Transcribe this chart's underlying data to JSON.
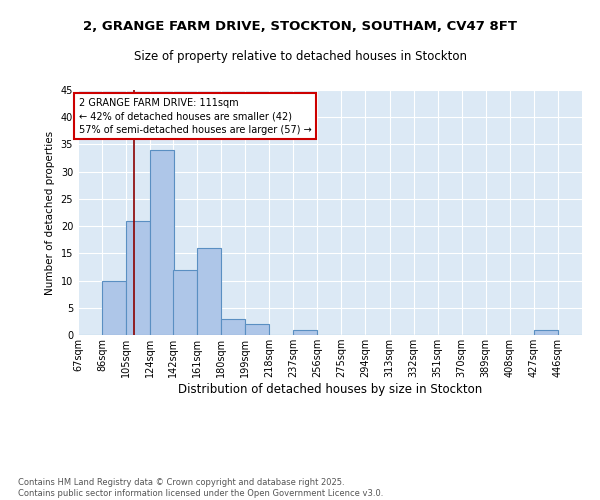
{
  "title_line1": "2, GRANGE FARM DRIVE, STOCKTON, SOUTHAM, CV47 8FT",
  "title_line2": "Size of property relative to detached houses in Stockton",
  "xlabel": "Distribution of detached houses by size in Stockton",
  "ylabel": "Number of detached properties",
  "footnote": "Contains HM Land Registry data © Crown copyright and database right 2025.\nContains public sector information licensed under the Open Government Licence v3.0.",
  "bins": [
    67,
    86,
    105,
    124,
    142,
    161,
    180,
    199,
    218,
    237,
    256,
    275,
    294,
    313,
    332,
    351,
    370,
    389,
    408,
    427,
    446
  ],
  "counts": [
    0,
    10,
    21,
    34,
    12,
    16,
    3,
    2,
    0,
    1,
    0,
    0,
    0,
    0,
    0,
    0,
    0,
    0,
    0,
    1,
    0
  ],
  "bar_color": "#aec6e8",
  "bar_edge_color": "#5a8fc2",
  "vline_x": 111,
  "vline_color": "#8b0000",
  "annotation_text": "2 GRANGE FARM DRIVE: 111sqm\n← 42% of detached houses are smaller (42)\n57% of semi-detached houses are larger (57) →",
  "annotation_box_color": "#ffffff",
  "annotation_border_color": "#cc0000",
  "ylim": [
    0,
    45
  ],
  "yticks": [
    0,
    5,
    10,
    15,
    20,
    25,
    30,
    35,
    40,
    45
  ],
  "fig_bg_color": "#ffffff",
  "plot_bg_color": "#dce9f5",
  "grid_color": "#ffffff",
  "title1_fontsize": 9.5,
  "title2_fontsize": 8.5,
  "ylabel_fontsize": 7.5,
  "xlabel_fontsize": 8.5,
  "tick_fontsize": 7,
  "annotation_fontsize": 7,
  "footnote_fontsize": 6,
  "footnote_color": "#555555"
}
